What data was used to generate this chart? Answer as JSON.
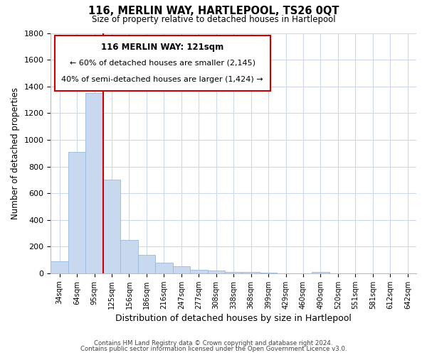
{
  "title": "116, MERLIN WAY, HARTLEPOOL, TS26 0QT",
  "subtitle": "Size of property relative to detached houses in Hartlepool",
  "xlabel": "Distribution of detached houses by size in Hartlepool",
  "ylabel": "Number of detached properties",
  "categories": [
    "34sqm",
    "64sqm",
    "95sqm",
    "125sqm",
    "156sqm",
    "186sqm",
    "216sqm",
    "247sqm",
    "277sqm",
    "308sqm",
    "338sqm",
    "368sqm",
    "399sqm",
    "429sqm",
    "460sqm",
    "490sqm",
    "520sqm",
    "551sqm",
    "581sqm",
    "612sqm",
    "642sqm"
  ],
  "values": [
    90,
    910,
    1350,
    700,
    250,
    140,
    80,
    55,
    25,
    20,
    10,
    10,
    5,
    0,
    0,
    10,
    0,
    0,
    0,
    0,
    0
  ],
  "bar_color": "#c8d8ee",
  "bar_edge_color": "#99b8d8",
  "vline_color": "#cc0000",
  "annotation_title": "116 MERLIN WAY: 121sqm",
  "annotation_line1": "← 60% of detached houses are smaller (2,145)",
  "annotation_line2": "40% of semi-detached houses are larger (1,424) →",
  "annotation_box_color": "#ffffff",
  "annotation_box_edge": "#cc0000",
  "ylim": [
    0,
    1800
  ],
  "yticks": [
    0,
    200,
    400,
    600,
    800,
    1000,
    1200,
    1400,
    1600,
    1800
  ],
  "footnote1": "Contains HM Land Registry data © Crown copyright and database right 2024.",
  "footnote2": "Contains public sector information licensed under the Open Government Licence v3.0.",
  "bg_color": "#ffffff",
  "grid_color": "#cdd8ec"
}
